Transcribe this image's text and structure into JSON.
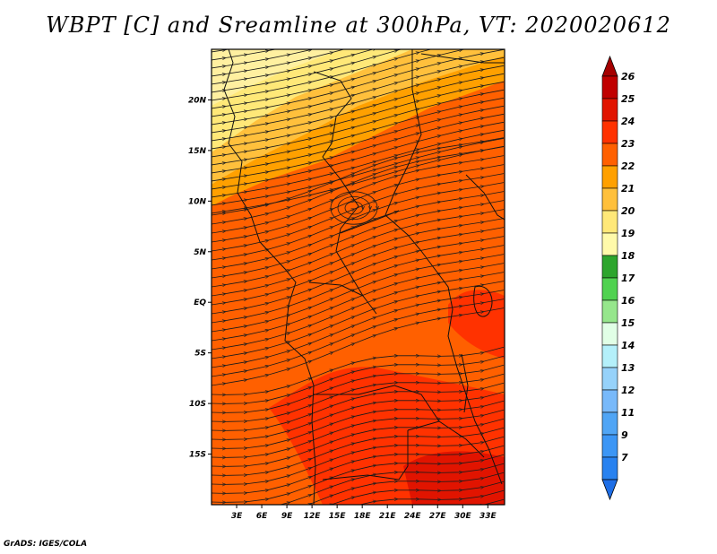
{
  "title": "WBPT [C] and Sreamline at 300hPa, VT: 2020020612",
  "footer": "GrADS: IGES/COLA",
  "map": {
    "lat_ticks": [
      {
        "lat": 20,
        "label": "20N"
      },
      {
        "lat": 15,
        "label": "15N"
      },
      {
        "lat": 10,
        "label": "10N"
      },
      {
        "lat": 5,
        "label": "5N"
      },
      {
        "lat": 0,
        "label": "EQ"
      },
      {
        "lat": -5,
        "label": "5S"
      },
      {
        "lat": -10,
        "label": "10S"
      },
      {
        "lat": -15,
        "label": "15S"
      }
    ],
    "lon_ticks": [
      {
        "lon": 3,
        "label": "3E"
      },
      {
        "lon": 6,
        "label": "6E"
      },
      {
        "lon": 9,
        "label": "9E"
      },
      {
        "lon": 12,
        "label": "12E"
      },
      {
        "lon": 15,
        "label": "15E"
      },
      {
        "lon": 18,
        "label": "18E"
      },
      {
        "lon": 21,
        "label": "21E"
      },
      {
        "lon": 24,
        "label": "24E"
      },
      {
        "lon": 27,
        "label": "27E"
      },
      {
        "lon": 30,
        "label": "30E"
      },
      {
        "lon": 33,
        "label": "33E"
      }
    ],
    "lon_range": [
      0,
      35
    ],
    "lat_range": [
      -20,
      25
    ]
  },
  "colorbar": {
    "labels": [
      "7",
      "9",
      "11",
      "12",
      "13",
      "14",
      "15",
      "16",
      "17",
      "18",
      "19",
      "20",
      "21",
      "22",
      "23",
      "24",
      "25",
      "26"
    ],
    "colors": [
      "#1e6ee6",
      "#2882f0",
      "#3c96f5",
      "#50a5f5",
      "#78b9fa",
      "#96d2fa",
      "#b4f0fa",
      "#e1ffe6",
      "#96e68c",
      "#50d250",
      "#2da52d",
      "#fffaaa",
      "#ffe878",
      "#ffc03c",
      "#ffa000",
      "#ff6000",
      "#ff3200",
      "#e11400",
      "#c00000",
      "#a50000"
    ]
  }
}
